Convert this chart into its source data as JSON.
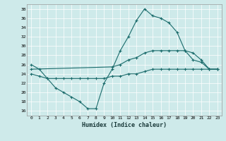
{
  "xlabel": "Humidex (Indice chaleur)",
  "xlim": [
    -0.5,
    23.5
  ],
  "ylim": [
    15,
    39
  ],
  "yticks": [
    16,
    18,
    20,
    22,
    24,
    26,
    28,
    30,
    32,
    34,
    36,
    38
  ],
  "xticks": [
    0,
    1,
    2,
    3,
    4,
    5,
    6,
    7,
    8,
    9,
    10,
    11,
    12,
    13,
    14,
    15,
    16,
    17,
    18,
    19,
    20,
    21,
    22,
    23
  ],
  "background_color": "#ceeaea",
  "line_color": "#1a6b6b",
  "line1_x": [
    0,
    1,
    2,
    3,
    4,
    5,
    6,
    7,
    8,
    9,
    10,
    11,
    12,
    13,
    14,
    15,
    16,
    17,
    18,
    19,
    20,
    21,
    22,
    23
  ],
  "line1_y": [
    26,
    25,
    23,
    21,
    20,
    19,
    18,
    16.5,
    16.5,
    22,
    25,
    29,
    32,
    35.5,
    38,
    36.5,
    36,
    35,
    33,
    29,
    27,
    26.5,
    25,
    25
  ],
  "line2_x": [
    0,
    10,
    11,
    12,
    13,
    14,
    15,
    16,
    17,
    18,
    19,
    20,
    21,
    22,
    23
  ],
  "line2_y": [
    25,
    25.5,
    26,
    27,
    27.5,
    28.5,
    29,
    29,
    29,
    29,
    29,
    28.5,
    27,
    25,
    25
  ],
  "line3_x": [
    0,
    1,
    2,
    3,
    4,
    5,
    6,
    7,
    8,
    9,
    10,
    11,
    12,
    13,
    14,
    15,
    16,
    17,
    18,
    19,
    20,
    21,
    22,
    23
  ],
  "line3_y": [
    24,
    23.5,
    23,
    23,
    23,
    23,
    23,
    23,
    23,
    23,
    23.5,
    23.5,
    24,
    24,
    24.5,
    25,
    25,
    25,
    25,
    25,
    25,
    25,
    25,
    25
  ]
}
